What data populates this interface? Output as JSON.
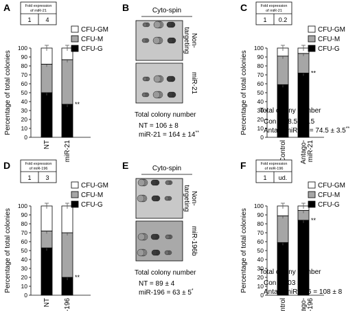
{
  "panels": [
    {
      "id": "A",
      "type": "bar",
      "fold": {
        "caption": "Fold expression of miR-21",
        "values": [
          "1",
          "4"
        ]
      },
      "ylabel": "Percentage of total colonies",
      "ylim": [
        0,
        100
      ],
      "yticks": [
        "0",
        "10",
        "20",
        "30",
        "40",
        "50",
        "60",
        "70",
        "80",
        "90",
        "100"
      ],
      "categories": [
        "NT",
        "miR-21"
      ],
      "series": [
        {
          "name": "CFU-G",
          "values": [
            50,
            37
          ]
        },
        {
          "name": "CFU-M",
          "values": [
            32,
            50
          ]
        },
        {
          "name": "CFU-GM",
          "values": [
            18,
            13
          ]
        }
      ],
      "legend": [
        "CFU-GM",
        "CFU-M",
        "CFU-G"
      ],
      "significance": "**"
    },
    {
      "id": "B",
      "title": "Cyto-spin",
      "images": [
        "Non-\ntargeting",
        "miR-21"
      ],
      "total_label": "Total colony number",
      "lines": [
        {
          "text": "NT = 106 ± 8",
          "sup": ""
        },
        {
          "text": "miR-21 = 164 ± 14",
          "sup": "**"
        }
      ]
    },
    {
      "id": "C",
      "type": "bar",
      "fold": {
        "caption": "Fold expression of miR-21",
        "values": [
          "1",
          "0.2"
        ]
      },
      "ylabel": "Percentage of total colonies",
      "ylim": [
        0,
        100
      ],
      "yticks": [
        "0",
        "10",
        "20",
        "30",
        "40",
        "50",
        "60",
        "70",
        "80",
        "90",
        "100"
      ],
      "categories": [
        "Control",
        "Antago-\nmiR-21"
      ],
      "series": [
        {
          "name": "CFU-G",
          "values": [
            59,
            72
          ]
        },
        {
          "name": "CFU-M",
          "values": [
            32,
            22
          ]
        },
        {
          "name": "CFU-GM",
          "values": [
            9,
            6
          ]
        }
      ],
      "legend": [
        "CFU-GM",
        "CFU-M",
        "CFU-G"
      ],
      "significance": "**",
      "total_label": "Total colony number",
      "lines": [
        {
          "text": "Con = 98.5 ± 3.5",
          "sup": ""
        },
        {
          "text": "AntagomiR-21 = 74.5 ± 3.5",
          "sup": "**"
        }
      ]
    },
    {
      "id": "D",
      "type": "bar",
      "fold": {
        "caption": "Fold expression of miR-196",
        "values": [
          "1",
          "3"
        ]
      },
      "ylabel": "Percentage of total colonies",
      "ylim": [
        0,
        100
      ],
      "yticks": [
        "0",
        "10",
        "20",
        "30",
        "40",
        "50",
        "60",
        "70",
        "80",
        "90",
        "100"
      ],
      "categories": [
        "NT",
        "miR-196"
      ],
      "series": [
        {
          "name": "CFU-G",
          "values": [
            53,
            20
          ]
        },
        {
          "name": "CFU-M",
          "values": [
            19,
            50
          ]
        },
        {
          "name": "CFU-GM",
          "values": [
            28,
            30
          ]
        }
      ],
      "legend": [
        "CFU-GM",
        "CFU-M",
        "CFU-G"
      ],
      "significance": "**"
    },
    {
      "id": "E",
      "title": "Cyto-spin",
      "images": [
        "Non-\ntargeting",
        "miR-196b"
      ],
      "total_label": "Total colony number",
      "lines": [
        {
          "text": "NT = 89 ± 4",
          "sup": ""
        },
        {
          "text": "miR-196 = 63 ± 5",
          "sup": "*"
        }
      ]
    },
    {
      "id": "F",
      "type": "bar",
      "fold": {
        "caption": "Fold expression of miR-196",
        "values": [
          "1",
          "ud."
        ]
      },
      "ylabel": "Percentage of total colonies",
      "ylim": [
        0,
        100
      ],
      "yticks": [
        "0",
        "10",
        "20",
        "30",
        "40",
        "50",
        "60",
        "70",
        "80",
        "90",
        "100"
      ],
      "categories": [
        "Control",
        "Antago-\nmiR-196"
      ],
      "series": [
        {
          "name": "CFU-G",
          "values": [
            59,
            84
          ]
        },
        {
          "name": "CFU-M",
          "values": [
            30,
            11
          ]
        },
        {
          "name": "CFU-GM",
          "values": [
            11,
            5
          ]
        }
      ],
      "legend": [
        "CFU-GM",
        "CFU-M",
        "CFU-G"
      ],
      "significance": "**",
      "total_label": "Total colony number",
      "lines": [
        {
          "text": "Con = 103 ± 9",
          "sup": ""
        },
        {
          "text": "AntagomiR-196 = 108 ± 8",
          "sup": ""
        }
      ]
    }
  ],
  "colors": {
    "CFU-GM": "#ffffff",
    "CFU-M": "#a6a6a6",
    "CFU-G": "#000000"
  }
}
